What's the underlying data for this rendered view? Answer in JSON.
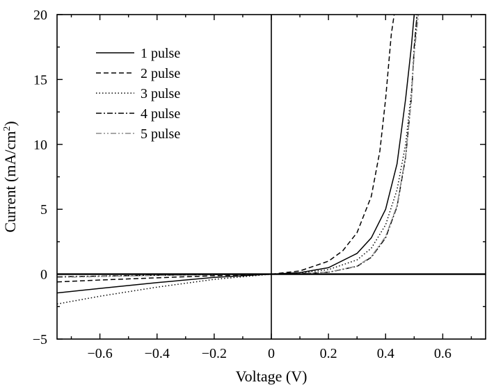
{
  "chart_data": {
    "type": "line",
    "xlabel": "Voltage (V)",
    "ylabel_prefix": "Current (mA/cm",
    "ylabel_sup": "2",
    "ylabel_suffix": ")",
    "xlim": [
      -0.75,
      0.75
    ],
    "ylim": [
      -5,
      20
    ],
    "x_ticks": [
      -0.6,
      -0.4,
      -0.2,
      0,
      0.2,
      0.4,
      0.6
    ],
    "x_tick_labels": [
      "−0.6",
      "−0.4",
      "−0.2",
      "0",
      "0.2",
      "0.4",
      "0.6"
    ],
    "y_ticks": [
      -5,
      0,
      5,
      10,
      15,
      20
    ],
    "y_tick_labels": [
      "−5",
      "0",
      "5",
      "10",
      "15",
      "20"
    ],
    "grid": false,
    "legend_position": "top-left",
    "reference_lines": {
      "x": 0,
      "y": 0
    },
    "series": [
      {
        "name": "1 pulse",
        "style": "solid",
        "color": "#000000",
        "points": [
          [
            -0.75,
            -1.45
          ],
          [
            -0.6,
            -1.1
          ],
          [
            -0.4,
            -0.65
          ],
          [
            -0.2,
            -0.25
          ],
          [
            0,
            0
          ],
          [
            0.1,
            0.12
          ],
          [
            0.2,
            0.5
          ],
          [
            0.3,
            1.6
          ],
          [
            0.35,
            2.8
          ],
          [
            0.4,
            5.0
          ],
          [
            0.44,
            8.5
          ],
          [
            0.47,
            13.5
          ],
          [
            0.49,
            17.5
          ],
          [
            0.5,
            20
          ]
        ]
      },
      {
        "name": "2 pulse",
        "style": "dashed",
        "color": "#000000",
        "points": [
          [
            -0.75,
            -0.6
          ],
          [
            -0.6,
            -0.45
          ],
          [
            -0.4,
            -0.28
          ],
          [
            -0.2,
            -0.12
          ],
          [
            0,
            0
          ],
          [
            0.1,
            0.25
          ],
          [
            0.2,
            1.0
          ],
          [
            0.25,
            1.8
          ],
          [
            0.3,
            3.2
          ],
          [
            0.35,
            6.0
          ],
          [
            0.38,
            9.5
          ],
          [
            0.4,
            13.5
          ],
          [
            0.42,
            18.5
          ],
          [
            0.43,
            20
          ]
        ]
      },
      {
        "name": "3 pulse",
        "style": "dotted",
        "color": "#000000",
        "points": [
          [
            -0.75,
            -2.3
          ],
          [
            -0.6,
            -1.7
          ],
          [
            -0.4,
            -1.0
          ],
          [
            -0.2,
            -0.4
          ],
          [
            0,
            0
          ],
          [
            0.1,
            0.08
          ],
          [
            0.2,
            0.35
          ],
          [
            0.3,
            1.1
          ],
          [
            0.35,
            2.0
          ],
          [
            0.4,
            3.8
          ],
          [
            0.44,
            6.5
          ],
          [
            0.47,
            10.0
          ],
          [
            0.49,
            14.0
          ],
          [
            0.505,
            18.5
          ],
          [
            0.51,
            20
          ]
        ]
      },
      {
        "name": "4 pulse",
        "style": "dashdot",
        "color": "#000000",
        "points": [
          [
            -0.75,
            -0.2
          ],
          [
            -0.6,
            -0.15
          ],
          [
            -0.4,
            -0.08
          ],
          [
            -0.2,
            -0.03
          ],
          [
            0,
            0
          ],
          [
            0.1,
            0.04
          ],
          [
            0.2,
            0.15
          ],
          [
            0.3,
            0.6
          ],
          [
            0.35,
            1.3
          ],
          [
            0.4,
            2.8
          ],
          [
            0.44,
            5.2
          ],
          [
            0.47,
            9.0
          ],
          [
            0.49,
            13.5
          ],
          [
            0.5,
            17.5
          ],
          [
            0.51,
            20
          ]
        ]
      },
      {
        "name": "5 pulse",
        "style": "dashdotdot",
        "color": "#8a8a8a",
        "points": [
          [
            -0.75,
            -0.25
          ],
          [
            -0.6,
            -0.18
          ],
          [
            -0.4,
            -0.1
          ],
          [
            -0.2,
            -0.04
          ],
          [
            0,
            0
          ],
          [
            0.1,
            0.04
          ],
          [
            0.2,
            0.16
          ],
          [
            0.3,
            0.62
          ],
          [
            0.35,
            1.35
          ],
          [
            0.4,
            2.9
          ],
          [
            0.44,
            5.3
          ],
          [
            0.47,
            9.1
          ],
          [
            0.49,
            13.4
          ],
          [
            0.5,
            17.0
          ],
          [
            0.515,
            20
          ]
        ]
      }
    ]
  }
}
